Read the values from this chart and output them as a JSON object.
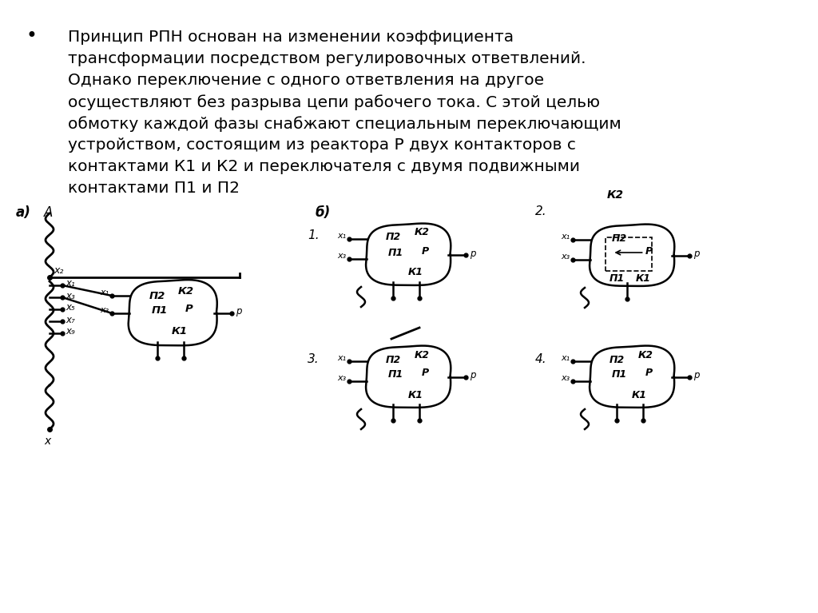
{
  "background_color": "#ffffff",
  "lines": [
    "Принцип РПН основан на изменении коэффициента",
    "трансформации посредством регулировочных ответвлений.",
    "Однако переключение с одного ответвления на другое",
    "осуществляют без разрыва цепи рабочего тока. С этой целью",
    "обмотку каждой фазы снабжают специальным переключающим",
    "устройством, состоящим из реактора Р двух контакторов с",
    "контактами К1 и К2 и переключателя с двумя подвижными",
    "контактами П1 и П2"
  ],
  "fig_width": 10.24,
  "fig_height": 7.67,
  "dpi": 100
}
